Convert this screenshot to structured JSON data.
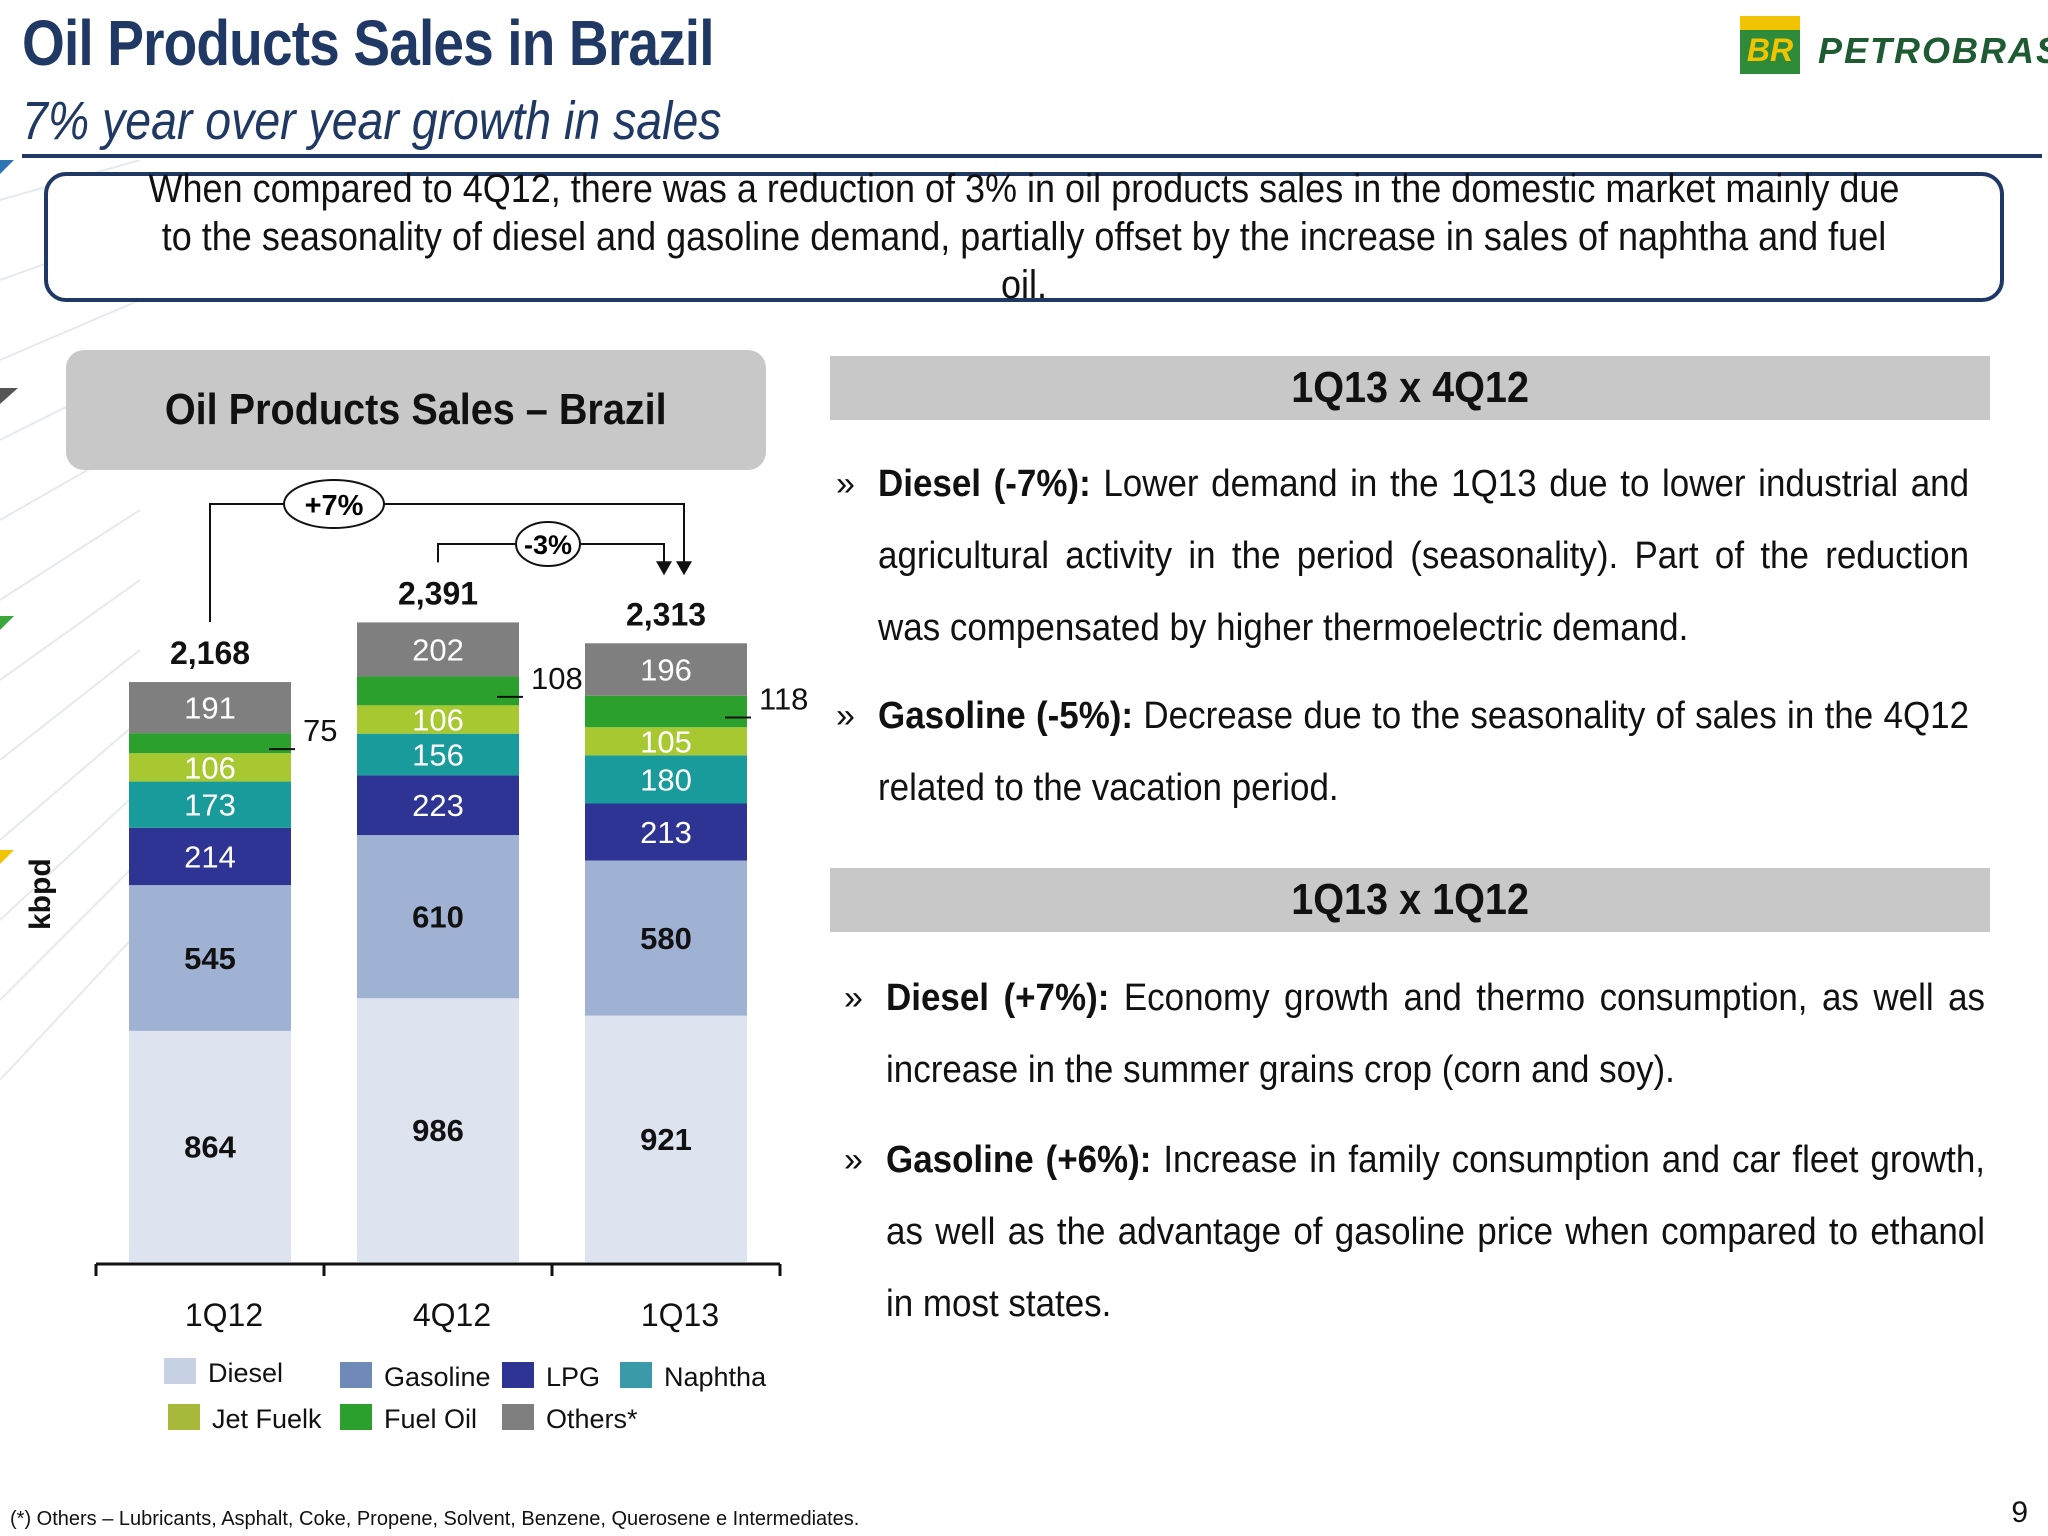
{
  "header": {
    "title": "Oil Products Sales in Brazil",
    "subtitle": "7% year over year growth in sales",
    "logo_mark": "BR",
    "logo_text": "PETROBRAS"
  },
  "summary": "When compared to 4Q12, there was a reduction of 3% in oil products sales in the domestic market mainly due to the seasonality of diesel and gasoline demand, partially offset by the increase in sales of naphtha and fuel oil.",
  "chart_data": {
    "type": "bar",
    "stacked": true,
    "title": "Oil Products Sales – Brazil",
    "ylabel": "kbpd",
    "categories": [
      "1Q12",
      "4Q12",
      "1Q13"
    ],
    "totals": [
      "2,168",
      "2,391",
      "2,313"
    ],
    "series": [
      {
        "name": "Diesel",
        "color": "#dde3ef",
        "values": [
          864,
          986,
          921
        ]
      },
      {
        "name": "Gasoline",
        "color": "#a0b2d3",
        "values": [
          545,
          610,
          580
        ]
      },
      {
        "name": "LPG",
        "color": "#2e3494",
        "values": [
          214,
          223,
          213
        ]
      },
      {
        "name": "Naphtha",
        "color": "#1a9b9b",
        "values": [
          173,
          156,
          180
        ]
      },
      {
        "name": "Jet Fuelk",
        "color": "#a8c832",
        "values": [
          106,
          106,
          105
        ]
      },
      {
        "name": "Fuel Oil",
        "color": "#2ca02c",
        "values": [
          75,
          108,
          118
        ]
      },
      {
        "name": "Others*",
        "color": "#7f7f7f",
        "values": [
          191,
          202,
          196
        ]
      }
    ],
    "annotations": [
      {
        "label": "+7%",
        "from": "1Q12",
        "to": "1Q13"
      },
      {
        "label": "-3%",
        "from": "4Q12",
        "to": "1Q13"
      }
    ],
    "legend": [
      {
        "name": "Diesel",
        "color": "#c6d2e4"
      },
      {
        "name": "Gasoline",
        "color": "#6f8ab8"
      },
      {
        "name": "LPG",
        "color": "#2e3494"
      },
      {
        "name": "Naphtha",
        "color": "#3a9aa8"
      },
      {
        "name": "Jet Fuelk",
        "color": "#a8b83a"
      },
      {
        "name": "Fuel Oil",
        "color": "#2ca02c"
      },
      {
        "name": "Others*",
        "color": "#7f7f7f"
      }
    ]
  },
  "sections": [
    {
      "heading": "1Q13 x 4Q12",
      "bullets": [
        {
          "lead": "Diesel (-7%):",
          "text": " Lower demand in the 1Q13 due to lower industrial and agricultural activity in the period (seasonality). Part of the reduction was compensated by higher thermoelectric demand."
        },
        {
          "lead": "Gasoline (-5%):",
          "text": " Decrease due to the seasonality of sales in the 4Q12 related to the vacation period."
        }
      ]
    },
    {
      "heading": "1Q13 x 1Q12",
      "bullets": [
        {
          "lead": "Diesel (+7%):",
          "text": " Economy growth and thermo consumption, as well as increase in the summer grains crop (corn and soy)."
        },
        {
          "lead": "Gasoline (+6%):",
          "text": " Increase in family consumption and car fleet growth, as well as the advantage of gasoline price when compared to ethanol in most states."
        }
      ]
    }
  ],
  "bullet_mark": "»",
  "footnote": "(*) Others – Lubricants, Asphalt, Coke, Propene, Solvent, Benzene, Querosene e Intermediates.",
  "page_number": "9",
  "colors": {
    "navy": "#1f3864",
    "panel_gray": "#c8c8c8"
  }
}
